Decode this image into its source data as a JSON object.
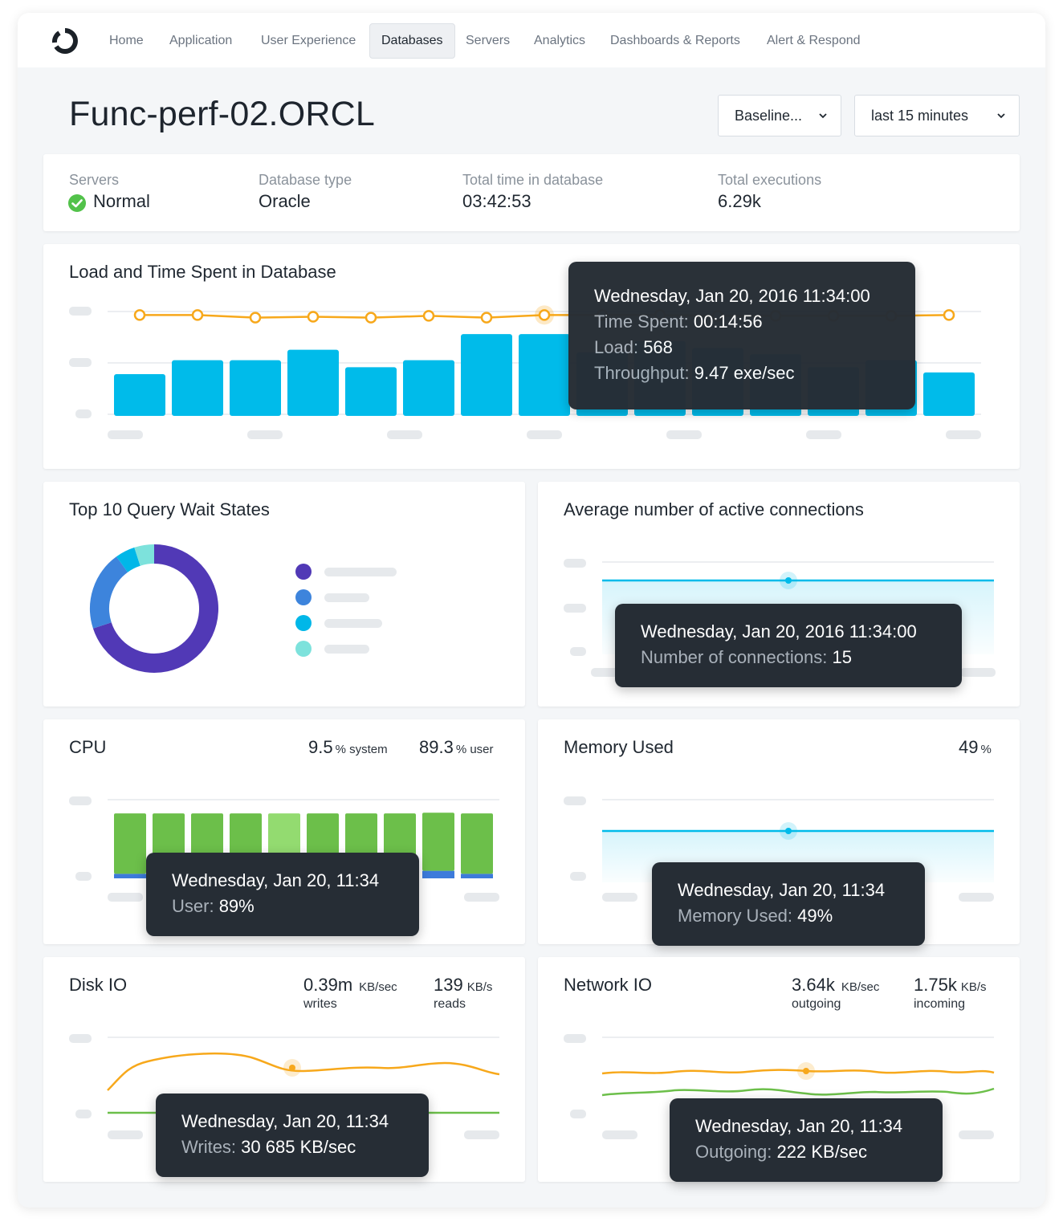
{
  "nav": {
    "items": [
      {
        "label": "Home"
      },
      {
        "label": "Application"
      },
      {
        "label": "User Experience"
      },
      {
        "label": "Databases",
        "active": true
      },
      {
        "label": "Servers"
      },
      {
        "label": "Analytics"
      },
      {
        "label": "Dashboards & Reports"
      },
      {
        "label": "Alert & Respond"
      }
    ]
  },
  "header": {
    "title": "Func-perf-02.ORCL",
    "baseline_select": "Baseline...",
    "time_select": "last 15 minutes"
  },
  "summary": {
    "servers_label": "Servers",
    "servers_value": "Normal",
    "db_type_label": "Database type",
    "db_type_value": "Oracle",
    "total_time_label": "Total time in database",
    "total_time_value": "03:42:53",
    "executions_label": "Total executions",
    "executions_value": "6.29k"
  },
  "colors": {
    "bar_blue": "#00bbea",
    "line_orange": "#f7a81b",
    "cpu_green": "#6cbf4a",
    "cpu_highlight": "#93db70",
    "cpu_blue": "#3d7bdb",
    "donut_purple": "#5139b6",
    "donut_blue": "#3d84dc",
    "donut_cyan": "#00b7e8",
    "donut_teal": "#7de2dc",
    "status_green": "#52c24a",
    "tooltip_bg": "#262d35"
  },
  "load_chart": {
    "title": "Load and Time Spent in Database",
    "tooltip": {
      "date": "Wednesday, Jan 20, 2016 11:34:00",
      "time_spent_label": "Time Spent:",
      "time_spent_value": "00:14:56",
      "load_label": "Load:",
      "load_value": "568",
      "throughput_label": "Throughput:",
      "throughput_value": "9.47 exe/sec"
    }
  },
  "wait_states": {
    "title": "Top 10 Query Wait States"
  },
  "connections": {
    "title": "Average number of active connections",
    "tooltip": {
      "date": "Wednesday, Jan 20, 2016 11:34:00",
      "label": "Number of connections:",
      "value": "15"
    }
  },
  "cpu": {
    "title": "CPU",
    "system_value": "9.5",
    "system_unit": "% system",
    "user_value": "89.3",
    "user_unit": "% user",
    "tooltip": {
      "date": "Wednesday, Jan 20, 11:34",
      "label": "User:",
      "value": "89%"
    }
  },
  "memory": {
    "title": "Memory Used",
    "value": "49",
    "unit": "%",
    "tooltip": {
      "date": "Wednesday, Jan 20, 11:34",
      "label": "Memory Used:",
      "value": "49%"
    }
  },
  "disk": {
    "title": "Disk IO",
    "writes_value": "0.39m",
    "writes_unit": "KB/sec",
    "writes_sub": "writes",
    "reads_value": "139",
    "reads_unit": "KB/s",
    "reads_sub": "reads",
    "tooltip": {
      "date": "Wednesday, Jan 20, 11:34",
      "label": "Writes:",
      "value": "30 685 KB/sec"
    }
  },
  "network": {
    "title": "Network IO",
    "out_value": "3.64k",
    "out_unit": "KB/sec",
    "out_sub": "outgoing",
    "in_value": "1.75k",
    "in_unit": "KB/s",
    "in_sub": "incoming",
    "tooltip": {
      "date": "Wednesday, Jan 20, 11:34",
      "label": "Outgoing:",
      "value": "222 KB/sec"
    }
  },
  "chart_data": [
    {
      "type": "bar",
      "title": "Load and Time Spent in Database",
      "series": [
        {
          "values": [
            48,
            64,
            64,
            76,
            56,
            64,
            94,
            94,
            73,
            86,
            78,
            71,
            56,
            64,
            50
          ]
        },
        {
          "values": [
            116,
            116,
            113,
            114,
            113,
            115,
            113,
            116,
            116,
            116,
            115,
            115,
            115,
            115,
            116
          ]
        }
      ],
      "highlight_index": 7
    },
    {
      "type": "pie",
      "title": "Top 10 Query Wait States",
      "values": [
        70,
        20,
        5,
        5
      ]
    },
    {
      "type": "bar",
      "title": "CPU",
      "series": [
        {
          "values": [
            80,
            79,
            80,
            80,
            80,
            80,
            80,
            80,
            77,
            80
          ]
        },
        {
          "values": [
            6,
            7,
            6,
            6,
            6,
            6,
            6,
            6,
            10,
            6
          ]
        }
      ],
      "highlight_index": 4
    }
  ]
}
